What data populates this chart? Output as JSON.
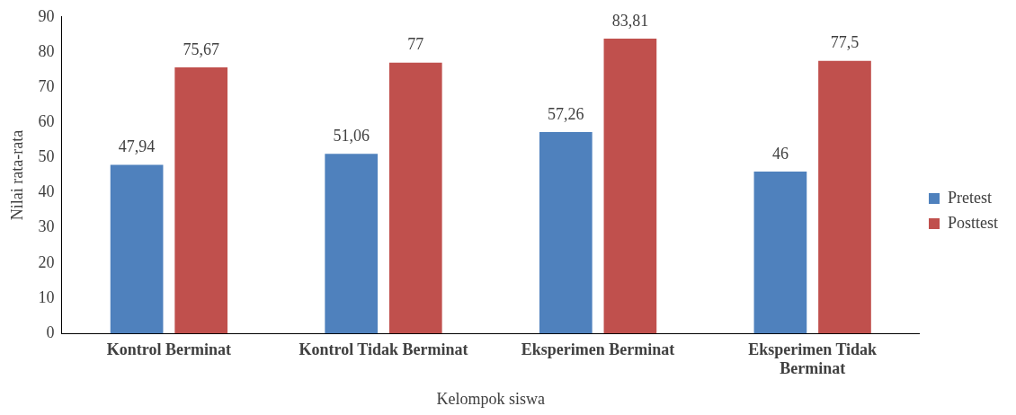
{
  "chart_data": {
    "type": "bar",
    "xlabel": "Kelompok siswa",
    "ylabel": "Nilai rata-rata",
    "categories": [
      "Kontrol Berminat",
      "Kontrol Tidak Berminat",
      "Eksperimen Berminat",
      "Eksperimen Tidak Berminat"
    ],
    "series": [
      {
        "name": "Pretest",
        "color": "#4f81bd",
        "values": [
          47.94,
          51.06,
          57.26,
          46
        ],
        "value_labels": [
          "47,94",
          "51,06",
          "57,26",
          "46"
        ]
      },
      {
        "name": "Posttest",
        "color": "#c0504d",
        "values": [
          75.67,
          77,
          83.81,
          77.5
        ],
        "value_labels": [
          "75,67",
          "77",
          "83,81",
          "77,5"
        ]
      }
    ],
    "ylim": [
      0,
      90
    ],
    "yticks": [
      0,
      10,
      20,
      30,
      40,
      50,
      60,
      70,
      80,
      90
    ],
    "grid": false,
    "legend": "right"
  }
}
